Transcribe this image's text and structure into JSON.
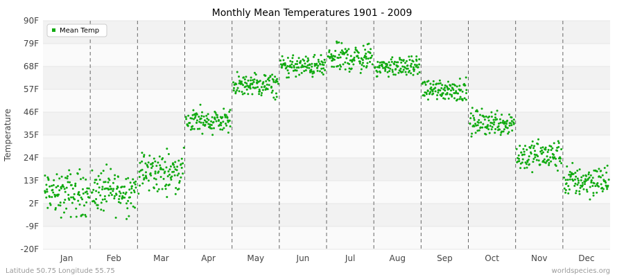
{
  "chart_data": {
    "type": "scatter",
    "title": "Monthly Mean Temperatures 1901 - 2009",
    "ylabel": "Temperature",
    "xlabel": "",
    "ylim": [
      -20,
      90
    ],
    "yticks": [
      "-20F",
      "-9F",
      "2F",
      "13F",
      "24F",
      "35F",
      "46F",
      "57F",
      "68F",
      "79F",
      "90F"
    ],
    "categories": [
      "Jan",
      "Feb",
      "Mar",
      "Apr",
      "May",
      "Jun",
      "Jul",
      "Aug",
      "Sep",
      "Oct",
      "Nov",
      "Dec"
    ],
    "legend": {
      "position": "top-left",
      "entries": [
        "Mean Temp"
      ]
    },
    "colors": {
      "series": "#11aa11",
      "band_light": "#fafafa",
      "band_dark": "#f2f2f2",
      "divider": "#666666"
    },
    "points_per_month": 109,
    "series": [
      {
        "name": "Mean Temp",
        "monthly": [
          {
            "month": "Jan",
            "min": -5,
            "max": 25,
            "mean": 7
          },
          {
            "month": "Feb",
            "min": -6,
            "max": 23,
            "mean": 8
          },
          {
            "month": "Mar",
            "min": 5,
            "max": 32,
            "mean": 17
          },
          {
            "month": "Apr",
            "min": 33,
            "max": 50,
            "mean": 42
          },
          {
            "month": "May",
            "min": 51,
            "max": 66,
            "mean": 59
          },
          {
            "month": "Jun",
            "min": 61,
            "max": 75,
            "mean": 68
          },
          {
            "month": "Jul",
            "min": 64,
            "max": 82,
            "mean": 72
          },
          {
            "month": "Aug",
            "min": 63,
            "max": 75,
            "mean": 68
          },
          {
            "month": "Sep",
            "min": 51,
            "max": 65,
            "mean": 57
          },
          {
            "month": "Oct",
            "min": 34,
            "max": 51,
            "mean": 41
          },
          {
            "month": "Nov",
            "min": 14,
            "max": 34,
            "mean": 25
          },
          {
            "month": "Dec",
            "min": 4,
            "max": 25,
            "mean": 13
          }
        ]
      }
    ]
  },
  "footer": {
    "location": "Latitude 50.75 Longitude 55.75",
    "source": "worldspecies.org"
  }
}
